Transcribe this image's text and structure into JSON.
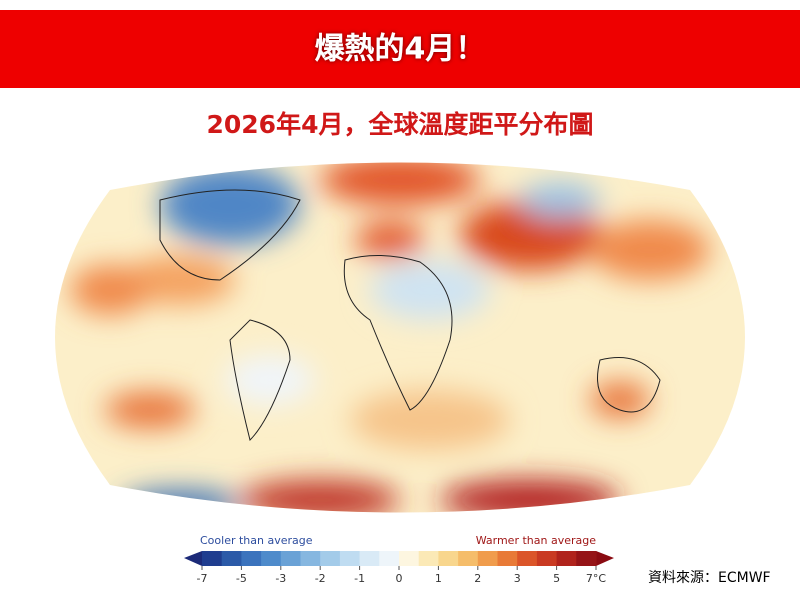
{
  "header": {
    "title": "爆熱的4月！"
  },
  "subtitle": "2026年4月，全球溫度距平分布圖",
  "colorbar": {
    "cooler_label": "Cooler than average",
    "warmer_label": "Warmer than average",
    "ticks": [
      -7,
      -5,
      -3,
      -2,
      -1,
      0,
      1,
      2,
      3,
      5,
      {
        "value": 7,
        "label": "7°C"
      }
    ]
  },
  "source": "資料來源：ECMWF"
}
